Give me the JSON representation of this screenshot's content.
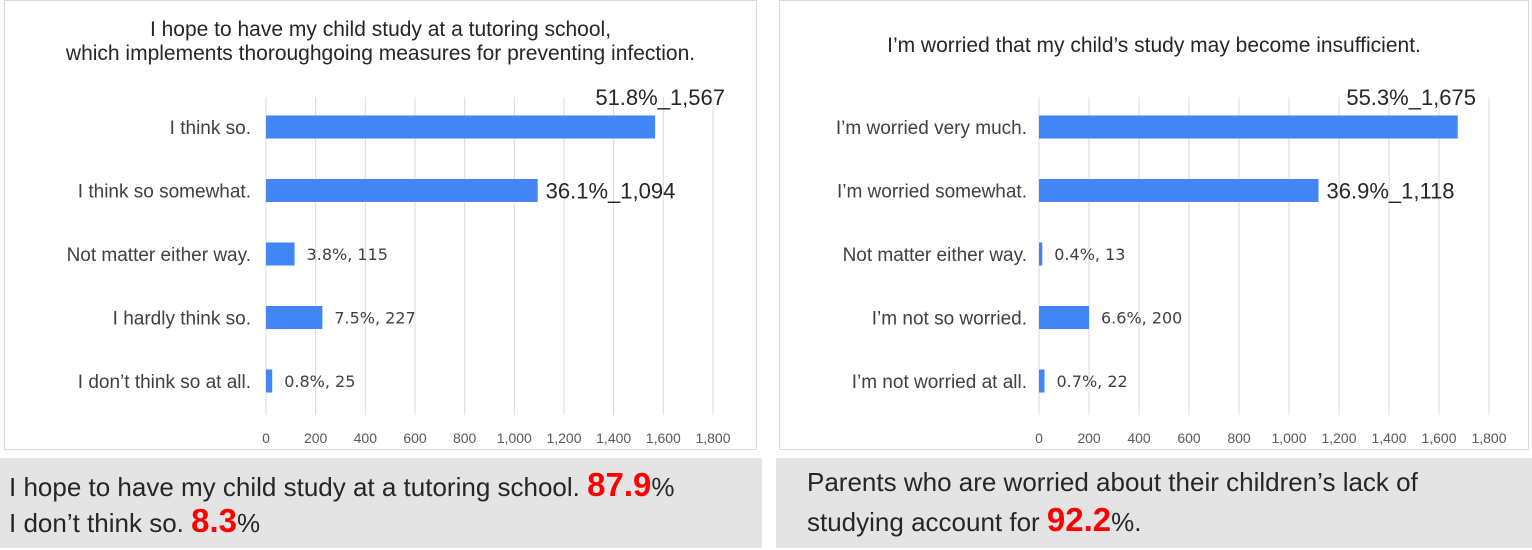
{
  "chart_data": [
    {
      "type": "bar",
      "orientation": "horizontal",
      "title": "I hope to have my child study at a tutoring school,\nwhich implements thoroughgoing measures for preventing infection.",
      "categories": [
        "I think so.",
        "I think so somewhat.",
        "Not matter either way.",
        "I hardly think so.",
        "I don’t think so at all."
      ],
      "values": [
        1567,
        1094,
        115,
        227,
        25
      ],
      "data_labels": [
        "51.8%_1,567",
        "36.1%_1,094",
        "3.8%, 115",
        "7.5%, 227",
        "0.8%, 25"
      ],
      "label_emphasis": [
        true,
        true,
        false,
        false,
        false
      ],
      "xlim": [
        0,
        1800
      ],
      "xticks": [
        0,
        200,
        400,
        600,
        800,
        1000,
        1200,
        1400,
        1600,
        1800
      ],
      "xtick_labels": [
        "0",
        "200",
        "400",
        "600",
        "800",
        "1,000",
        "1,200",
        "1,400",
        "1,600",
        "1,800"
      ],
      "grid": true,
      "bar_color": "#4285f4"
    },
    {
      "type": "bar",
      "orientation": "horizontal",
      "title": "I’m worried that my child’s study may become insufficient.",
      "categories": [
        "I’m worried very much.",
        "I’m worried somewhat.",
        "Not matter either way.",
        "I’m not so worried.",
        "I’m not worried at all."
      ],
      "values": [
        1675,
        1118,
        13,
        200,
        22
      ],
      "data_labels": [
        "55.3%_1,675",
        "36.9%_1,118",
        "0.4%, 13",
        "6.6%, 200",
        "0.7%, 22"
      ],
      "label_emphasis": [
        true,
        true,
        false,
        false,
        false
      ],
      "xlim": [
        0,
        1800
      ],
      "xticks": [
        0,
        200,
        400,
        600,
        800,
        1000,
        1200,
        1400,
        1600,
        1800
      ],
      "xtick_labels": [
        "0",
        "200",
        "400",
        "600",
        "800",
        "1,000",
        "1,200",
        "1,400",
        "1,600",
        "1,800"
      ],
      "grid": true,
      "bar_color": "#4285f4"
    }
  ],
  "footer_left": {
    "line1_text": "I hope to have my child study at a tutoring school. ",
    "line1_value": "87.9",
    "line1_unit": "%",
    "line2_text": "I don’t think so. ",
    "line2_value": "8.3",
    "line2_unit": "%"
  },
  "footer_right": {
    "line1_text": "Parents who are worried about their children’s lack of",
    "line2_text": "studying account for ",
    "line2_value": "92.2",
    "line2_unit": "%."
  },
  "colors": {
    "accent_red": "#ff0000",
    "bar_blue": "#4285f4",
    "footer_bg": "#e4e4e4"
  }
}
